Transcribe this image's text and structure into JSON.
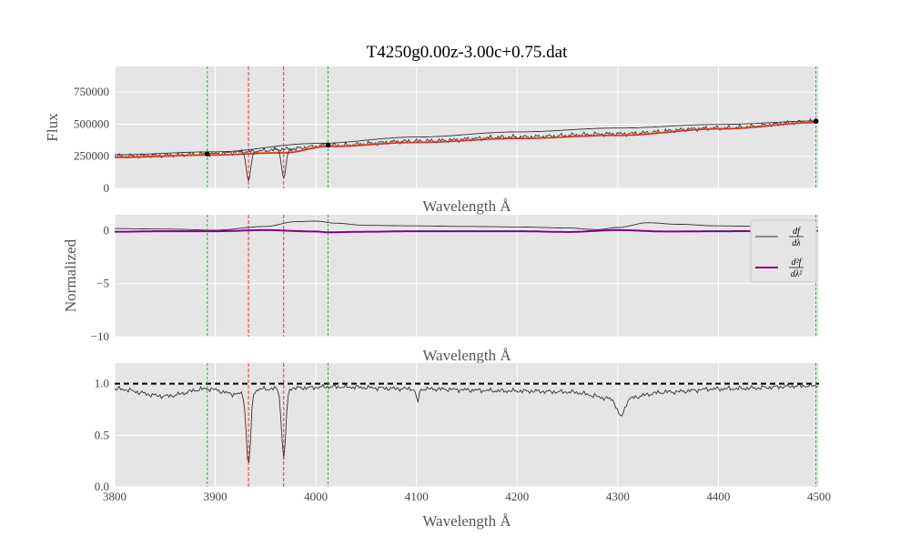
{
  "chart_data": {
    "type": "line",
    "title": "T4250g0.00z-3.00c+0.75.dat",
    "colors": {
      "background": "#e5e5e5",
      "grid": "#ffffff",
      "spectrum": "#333333",
      "fit_orange": "#ff7f0e",
      "fit_red": "#d62728",
      "vline_green": "#2ca02c",
      "vline_red": "#d62728",
      "second_derivative": "#800080",
      "marker": "#000000"
    },
    "xlim": [
      3800,
      4500
    ],
    "x_ticks": [
      3800,
      3900,
      4000,
      4100,
      4200,
      4300,
      4400,
      4500
    ],
    "x_tick_labels": [
      "3800",
      "3900",
      "4000",
      "4100",
      "4200",
      "4300",
      "4400",
      "4500"
    ],
    "vertical_lines": {
      "green": [
        3892,
        4012,
        4497
      ],
      "red": [
        3933,
        3968
      ]
    },
    "panels": [
      {
        "id": "flux",
        "ylabel": "Flux",
        "xlabel": "Wavelength Å",
        "ylim": [
          0,
          950000
        ],
        "y_ticks": [
          0,
          250000,
          500000,
          750000
        ],
        "y_tick_labels": [
          "0",
          "250000",
          "500000",
          "750000"
        ],
        "series": [
          {
            "name": "spectrum",
            "color": "#333333",
            "kind": "noisy",
            "x": [
              3800,
              3850,
              3892,
              3930,
              3970,
              4012,
              4100,
              4200,
              4300,
              4400,
              4500
            ],
            "y": [
              250000,
              258000,
              268000,
              285000,
              305000,
              335000,
              368000,
              400000,
              425000,
              470000,
              520000
            ]
          },
          {
            "name": "continuum_envelope",
            "color": "#333333",
            "x": [
              3800,
              3900,
              4000,
              4100,
              4200,
              4300,
              4400,
              4500
            ],
            "y": [
              262000,
              285000,
              350000,
              400000,
              440000,
              470000,
              498000,
              525000
            ]
          },
          {
            "name": "fit_orange",
            "color": "#ff7f0e",
            "x": [
              3800,
              3892,
              3968,
              4012,
              4100,
              4200,
              4300,
              4400,
              4500
            ],
            "y": [
              245000,
              262000,
              280000,
              330000,
              360000,
              390000,
              415000,
              465000,
              515000
            ]
          },
          {
            "name": "fit_red",
            "color": "#d62728",
            "x": [
              3800,
              3892,
              3968,
              4012,
              4100,
              4200,
              4300,
              4400,
              4500
            ],
            "y": [
              240000,
              258000,
              276000,
              325000,
              357000,
              388000,
              412000,
              462000,
              512000
            ]
          }
        ],
        "points": {
          "x": [
            3892,
            4012,
            4497
          ],
          "y": [
            268000,
            338000,
            523000
          ]
        }
      },
      {
        "id": "derivatives",
        "ylabel": "Normalized",
        "xlabel": "Wavelength Å",
        "ylim": [
          -10,
          1.5
        ],
        "y_ticks": [
          0,
          -5,
          -10
        ],
        "y_tick_labels": [
          "0",
          "−5",
          "−10"
        ],
        "series": [
          {
            "name": "df/dλ",
            "color": "#333333",
            "x": [
              3800,
              3850,
              3900,
              3950,
              3980,
              4000,
              4020,
              4050,
              4100,
              4150,
              4200,
              4250,
              4280,
              4300,
              4330,
              4360,
              4400,
              4450,
              4500
            ],
            "y": [
              0.2,
              0.15,
              0.05,
              0.4,
              0.85,
              0.9,
              0.7,
              0.5,
              0.45,
              0.4,
              0.35,
              0.25,
              0.1,
              0.3,
              0.75,
              0.6,
              0.45,
              0.4,
              0.35
            ]
          },
          {
            "name": "d²f/dλ²",
            "color": "#800080",
            "x": [
              3800,
              3850,
              3900,
              3950,
              4000,
              4012,
              4050,
              4100,
              4200,
              4250,
              4300,
              4350,
              4400,
              4500
            ],
            "y": [
              -0.1,
              -0.05,
              -0.05,
              0.05,
              -0.08,
              -0.15,
              -0.1,
              -0.05,
              -0.05,
              -0.12,
              0.05,
              -0.08,
              -0.05,
              -0.03
            ]
          }
        ],
        "legend": {
          "position": "upper right",
          "entries": [
            {
              "num": "df",
              "den": "dλ",
              "color": "#333333"
            },
            {
              "num": "d²f",
              "den": "dλ²",
              "color": "#800080"
            }
          ]
        }
      },
      {
        "id": "normalized",
        "xlabel": "Wavelength Å",
        "ylim": [
          0,
          1.2
        ],
        "y_ticks": [
          0.0,
          0.5,
          1.0
        ],
        "y_tick_labels": [
          "0.0",
          "0.5",
          "1.0"
        ],
        "reference_line": {
          "y": 1.0,
          "color": "#000000",
          "style": "dashed"
        },
        "series": [
          {
            "name": "normalized_spectrum",
            "color": "#333333",
            "kind": "noisy",
            "x": [
              3800,
              3850,
              3892,
              3920,
              3950,
              3990,
              4012,
              4100,
              4200,
              4250,
              4300,
              4350,
              4400,
              4500
            ],
            "y": [
              0.95,
              0.88,
              0.95,
              0.9,
              0.95,
              0.96,
              0.97,
              0.95,
              0.93,
              0.92,
              0.85,
              0.92,
              0.95,
              0.98
            ],
            "dips": [
              {
                "center": 3933,
                "depth": 0.2,
                "width": 3
              },
              {
                "center": 3968,
                "depth": 0.28,
                "width": 3
              },
              {
                "center": 4101,
                "depth": 0.82,
                "width": 2
              },
              {
                "center": 4303,
                "depth": 0.68,
                "width": 5
              }
            ]
          }
        ]
      }
    ]
  }
}
